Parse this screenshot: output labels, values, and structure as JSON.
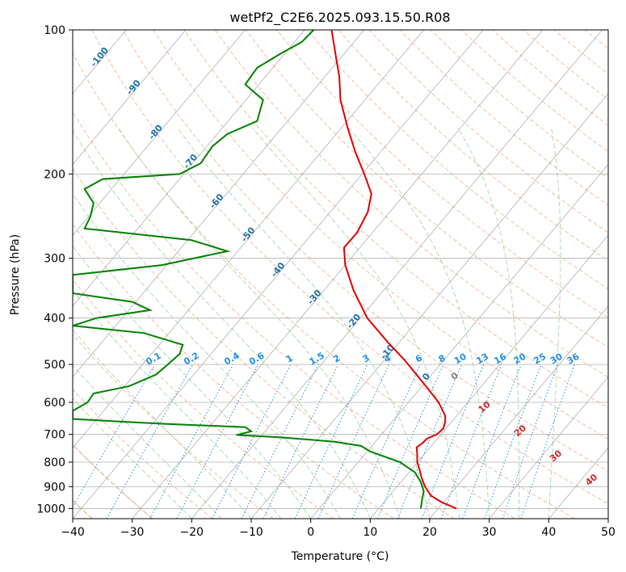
{
  "chart_data": {
    "type": "line",
    "subtype": "skew-T log-P diagram",
    "title": "wetPf2_C2E6.2025.093.15.50.R08",
    "xlabel": "Temperature (°C)",
    "ylabel": "Pressure (hPa)",
    "xlim": [
      -40,
      50
    ],
    "ylim": [
      1050,
      100
    ],
    "y_scale": "log",
    "grid": true,
    "x_ticks": [
      -40,
      -30,
      -20,
      -10,
      0,
      10,
      20,
      30,
      40,
      50
    ],
    "y_ticks": [
      100,
      200,
      300,
      400,
      500,
      600,
      700,
      800,
      900,
      1000
    ],
    "colors": {
      "temperature": "#e00000",
      "dewpoint": "#008000",
      "isotherm": "#b0b0b0",
      "dry_adiabat": "#f4a582",
      "moist_adiabat": "#a6d8a6",
      "mixing_ratio": "#1f8fe8",
      "isotherm_label": "#1f6fa8",
      "theta_e_label": "#d62728"
    },
    "temperature_profile": [
      {
        "p": 1000,
        "t": 24.5
      },
      {
        "p": 970,
        "t": 22.0
      },
      {
        "p": 940,
        "t": 20.2
      },
      {
        "p": 900,
        "t": 19.2
      },
      {
        "p": 860,
        "t": 18.6
      },
      {
        "p": 830,
        "t": 18.3
      },
      {
        "p": 800,
        "t": 17.9
      },
      {
        "p": 770,
        "t": 17.9
      },
      {
        "p": 745,
        "t": 17.8
      },
      {
        "p": 730,
        "t": 18.8
      },
      {
        "p": 715,
        "t": 19.5
      },
      {
        "p": 700,
        "t": 21.2
      },
      {
        "p": 680,
        "t": 22.3
      },
      {
        "p": 660,
        "t": 22.6
      },
      {
        "p": 640,
        "t": 22.6
      },
      {
        "p": 600,
        "t": 21.5
      },
      {
        "p": 560,
        "t": 19.6
      },
      {
        "p": 520,
        "t": 17.5
      },
      {
        "p": 490,
        "t": 15.8
      },
      {
        "p": 450,
        "t": 13.0
      },
      {
        "p": 400,
        "t": 9.5
      },
      {
        "p": 350,
        "t": 7.2
      },
      {
        "p": 310,
        "t": 5.8
      },
      {
        "p": 285,
        "t": 5.6
      },
      {
        "p": 265,
        "t": 7.8
      },
      {
        "p": 240,
        "t": 9.6
      },
      {
        "p": 220,
        "t": 10.2
      },
      {
        "p": 200,
        "t": 9.0
      },
      {
        "p": 180,
        "t": 7.5
      },
      {
        "p": 160,
        "t": 6.2
      },
      {
        "p": 140,
        "t": 5.0
      },
      {
        "p": 125,
        "t": 4.8
      },
      {
        "p": 115,
        "t": 4.3
      },
      {
        "p": 100,
        "t": 3.5
      }
    ],
    "dewpoint_profile": [
      {
        "p": 1000,
        "t": 18.5
      },
      {
        "p": 960,
        "t": 18.7
      },
      {
        "p": 920,
        "t": 19.0
      },
      {
        "p": 880,
        "t": 18.5
      },
      {
        "p": 840,
        "t": 17.5
      },
      {
        "p": 800,
        "t": 15.0
      },
      {
        "p": 760,
        "t": 10.0
      },
      {
        "p": 740,
        "t": 8.5
      },
      {
        "p": 725,
        "t": 4.0
      },
      {
        "p": 710,
        "t": -5.0
      },
      {
        "p": 702,
        "t": -12.5
      },
      {
        "p": 690,
        "t": -10.0
      },
      {
        "p": 676,
        "t": -11.0
      },
      {
        "p": 665,
        "t": -25.0
      },
      {
        "p": 650,
        "t": -40.0
      },
      {
        "p": 625,
        "t": -40.0
      },
      {
        "p": 600,
        "t": -37.5
      },
      {
        "p": 575,
        "t": -36.5
      },
      {
        "p": 555,
        "t": -30.5
      },
      {
        "p": 525,
        "t": -26.0
      },
      {
        "p": 500,
        "t": -24.0
      },
      {
        "p": 475,
        "t": -22.0
      },
      {
        "p": 455,
        "t": -21.5
      },
      {
        "p": 430,
        "t": -28.0
      },
      {
        "p": 415,
        "t": -40.0
      },
      {
        "p": 400,
        "t": -36.0
      },
      {
        "p": 385,
        "t": -27.0
      },
      {
        "p": 370,
        "t": -30.0
      },
      {
        "p": 355,
        "t": -40.0
      },
      {
        "p": 325,
        "t": -40.0
      },
      {
        "p": 310,
        "t": -25.0
      },
      {
        "p": 290,
        "t": -14.0
      },
      {
        "p": 275,
        "t": -20.0
      },
      {
        "p": 260,
        "t": -38.0
      },
      {
        "p": 245,
        "t": -37.0
      },
      {
        "p": 230,
        "t": -36.5
      },
      {
        "p": 215,
        "t": -38.0
      },
      {
        "p": 205,
        "t": -35.0
      },
      {
        "p": 200,
        "t": -22.0
      },
      {
        "p": 190,
        "t": -18.5
      },
      {
        "p": 175,
        "t": -16.5
      },
      {
        "p": 165,
        "t": -14.0
      },
      {
        "p": 155,
        "t": -9.0
      },
      {
        "p": 140,
        "t": -8.0
      },
      {
        "p": 130,
        "t": -11.0
      },
      {
        "p": 120,
        "t": -9.0
      },
      {
        "p": 112,
        "t": -5.0
      },
      {
        "p": 106,
        "t": -1.5
      },
      {
        "p": 100,
        "t": 0.5
      }
    ],
    "isotherm_labels": [
      {
        "t": -100,
        "p": 115,
        "text": "-100"
      },
      {
        "t": -90,
        "p": 133,
        "text": "-90"
      },
      {
        "t": -80,
        "p": 165,
        "text": "-80"
      },
      {
        "t": -70,
        "p": 190,
        "text": "-70"
      },
      {
        "t": -60,
        "p": 230,
        "text": "-60"
      },
      {
        "t": -50,
        "p": 270,
        "text": "-50"
      },
      {
        "t": -40,
        "p": 320,
        "text": "-40"
      },
      {
        "t": -30,
        "p": 365,
        "text": "-30"
      },
      {
        "t": -20,
        "p": 410,
        "text": "-20"
      },
      {
        "t": -10,
        "p": 475,
        "text": "-10"
      },
      {
        "t": 0,
        "p": 535,
        "text": "0"
      }
    ],
    "mixing_ratio_lines": [
      0.1,
      0.2,
      0.4,
      0.6,
      1,
      1.5,
      2,
      3,
      4,
      6,
      8,
      10,
      13,
      16,
      20,
      25,
      30,
      36
    ],
    "mixing_ratio_labels": [
      "0.1",
      "0.2",
      "0.4",
      "0.6",
      "1",
      "1.5",
      "2",
      "3",
      "4",
      "6",
      "8",
      "10",
      "13",
      "16",
      "20",
      "25",
      "30",
      "36"
    ],
    "theta_e_labels": [
      {
        "t": 29.5,
        "p": 620,
        "text": "10"
      },
      {
        "t": 35.5,
        "p": 695,
        "text": "20"
      },
      {
        "t": 41.5,
        "p": 785,
        "text": "30"
      },
      {
        "t": 47.5,
        "p": 880,
        "text": "40"
      }
    ]
  }
}
